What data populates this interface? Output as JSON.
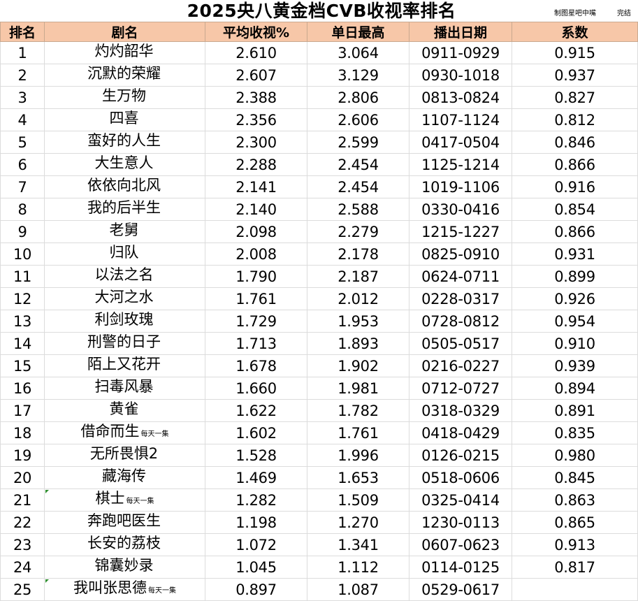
{
  "title": "2025央八黄金档CVB收视率排名",
  "credit": "制图星吧中嘴",
  "status": "完结",
  "columns": [
    "排名",
    "剧名",
    "平均收视%",
    "单日最高",
    "播出日期",
    "系数"
  ],
  "rows": [
    {
      "rank": "1",
      "name": "灼灼韶华",
      "note": "",
      "avg": "2.610",
      "peak": "3.064",
      "dates": "0911-0929",
      "coef": "0.915"
    },
    {
      "rank": "2",
      "name": "沉默的荣耀",
      "note": "",
      "avg": "2.607",
      "peak": "3.129",
      "dates": "0930-1018",
      "coef": "0.937"
    },
    {
      "rank": "3",
      "name": "生万物",
      "note": "",
      "avg": "2.388",
      "peak": "2.806",
      "dates": "0813-0824",
      "coef": "0.827"
    },
    {
      "rank": "4",
      "name": "四喜",
      "note": "",
      "avg": "2.356",
      "peak": "2.606",
      "dates": "1107-1124",
      "coef": "0.812"
    },
    {
      "rank": "5",
      "name": "蛮好的人生",
      "note": "",
      "avg": "2.300",
      "peak": "2.599",
      "dates": "0417-0504",
      "coef": "0.846"
    },
    {
      "rank": "6",
      "name": "大生意人",
      "note": "",
      "avg": "2.288",
      "peak": "2.454",
      "dates": "1125-1214",
      "coef": "0.866"
    },
    {
      "rank": "7",
      "name": "依依向北风",
      "note": "",
      "avg": "2.141",
      "peak": "2.454",
      "dates": "1019-1106",
      "coef": "0.916"
    },
    {
      "rank": "8",
      "name": "我的后半生",
      "note": "",
      "avg": "2.140",
      "peak": "2.588",
      "dates": "0330-0416",
      "coef": "0.854"
    },
    {
      "rank": "9",
      "name": "老舅",
      "note": "",
      "avg": "2.098",
      "peak": "2.279",
      "dates": "1215-1227",
      "coef": "0.866"
    },
    {
      "rank": "10",
      "name": "归队",
      "note": "",
      "avg": "2.008",
      "peak": "2.178",
      "dates": "0825-0910",
      "coef": "0.931"
    },
    {
      "rank": "11",
      "name": "以法之名",
      "note": "",
      "avg": "1.790",
      "peak": "2.187",
      "dates": "0624-0711",
      "coef": "0.899"
    },
    {
      "rank": "12",
      "name": "大河之水",
      "note": "",
      "avg": "1.761",
      "peak": "2.012",
      "dates": "0228-0317",
      "coef": "0.926"
    },
    {
      "rank": "13",
      "name": "利剑玫瑰",
      "note": "",
      "avg": "1.729",
      "peak": "1.953",
      "dates": "0728-0812",
      "coef": "0.954"
    },
    {
      "rank": "14",
      "name": "刑警的日子",
      "note": "",
      "avg": "1.713",
      "peak": "1.893",
      "dates": "0505-0517",
      "coef": "0.910"
    },
    {
      "rank": "15",
      "name": "陌上又花开",
      "note": "",
      "avg": "1.678",
      "peak": "1.902",
      "dates": "0216-0227",
      "coef": "0.939"
    },
    {
      "rank": "16",
      "name": "扫毒风暴",
      "note": "",
      "avg": "1.660",
      "peak": "1.981",
      "dates": "0712-0727",
      "coef": "0.894"
    },
    {
      "rank": "17",
      "name": "黄雀",
      "note": "",
      "avg": "1.622",
      "peak": "1.782",
      "dates": "0318-0329",
      "coef": "0.891"
    },
    {
      "rank": "18",
      "name": "借命而生",
      "note": "每天一集",
      "avg": "1.602",
      "peak": "1.761",
      "dates": "0418-0429",
      "coef": "0.835"
    },
    {
      "rank": "19",
      "name": "无所畏惧2",
      "note": "",
      "avg": "1.528",
      "peak": "1.996",
      "dates": "0126-0215",
      "coef": "0.980"
    },
    {
      "rank": "20",
      "name": "藏海传",
      "note": "",
      "avg": "1.469",
      "peak": "1.653",
      "dates": "0518-0606",
      "coef": "0.845"
    },
    {
      "rank": "21",
      "name": "棋士",
      "note": "每天一集",
      "avg": "1.282",
      "peak": "1.509",
      "dates": "0325-0414",
      "coef": "0.863"
    },
    {
      "rank": "22",
      "name": "奔跑吧医生",
      "note": "",
      "avg": "1.198",
      "peak": "1.270",
      "dates": "1230-0113",
      "coef": "0.865"
    },
    {
      "rank": "23",
      "name": "长安的荔枝",
      "note": "",
      "avg": "1.072",
      "peak": "1.341",
      "dates": "0607-0623",
      "coef": "0.913"
    },
    {
      "rank": "24",
      "name": "锦囊妙录",
      "note": "",
      "avg": "1.045",
      "peak": "1.112",
      "dates": "0114-0125",
      "coef": "0.817"
    },
    {
      "rank": "25",
      "name": "我叫张思德",
      "note": "每天一集",
      "avg": "0.897",
      "peak": "1.087",
      "dates": "0529-0617",
      "coef": ""
    }
  ]
}
